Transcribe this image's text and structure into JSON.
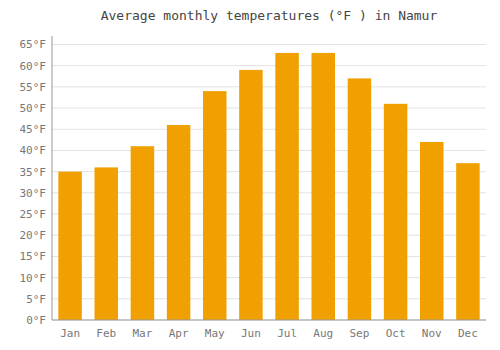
{
  "chart_data": {
    "type": "bar",
    "title": "Average monthly temperatures (°F ) in Namur",
    "categories": [
      "Jan",
      "Feb",
      "Mar",
      "Apr",
      "May",
      "Jun",
      "Jul",
      "Aug",
      "Sep",
      "Oct",
      "Nov",
      "Dec"
    ],
    "values": [
      35,
      36,
      41,
      46,
      54,
      59,
      63,
      63,
      57,
      51,
      42,
      37
    ],
    "color": "#F0A000",
    "ylim": [
      0,
      67
    ],
    "yticks": [
      {
        "value": 0,
        "label": "0°F"
      },
      {
        "value": 5,
        "label": "5°F"
      },
      {
        "value": 10,
        "label": "10°F"
      },
      {
        "value": 15,
        "label": "15°F"
      },
      {
        "value": 20,
        "label": "20°F"
      },
      {
        "value": 25,
        "label": "25°F"
      },
      {
        "value": 30,
        "label": "30°F"
      },
      {
        "value": 35,
        "label": "35°F"
      },
      {
        "value": 40,
        "label": "40°F"
      },
      {
        "value": 45,
        "label": "45°F"
      },
      {
        "value": 50,
        "label": "50°F"
      },
      {
        "value": 55,
        "label": "55°F"
      },
      {
        "value": 60,
        "label": "60°F"
      },
      {
        "value": 65,
        "label": "65°F"
      }
    ],
    "grid": true
  }
}
